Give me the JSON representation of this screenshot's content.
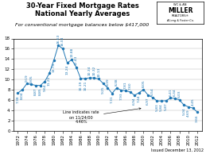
{
  "chart_data": {
    "type": "line",
    "title": "30-Year Fixed Mortgage Rates\nNational Yearly Averages",
    "subtitle": "For conventional mortgage balances below $417,000",
    "source": "Issued December 13, 2012",
    "logo_text": [
      "WC & AN",
      "MILLER",
      "REALTORS®",
      "A Long & Foster Co."
    ],
    "x": [
      1972,
      1973,
      1974,
      1975,
      1976,
      1977,
      1978,
      1979,
      1980,
      1981,
      1982,
      1983,
      1984,
      1985,
      1986,
      1987,
      1988,
      1989,
      1990,
      1991,
      1992,
      1993,
      1994,
      1995,
      1996,
      1997,
      1998,
      1999,
      2000,
      2001,
      2002,
      2003,
      2004,
      2005,
      2006,
      2007,
      2008,
      2009,
      2010,
      2011,
      2012
    ],
    "values": [
      7.38,
      8.04,
      9.19,
      9.05,
      8.87,
      8.85,
      9.64,
      11.2,
      13.74,
      16.63,
      16.04,
      13.24,
      13.88,
      12.43,
      10.19,
      10.21,
      10.34,
      10.32,
      10.13,
      9.25,
      8.39,
      7.31,
      8.38,
      7.93,
      7.81,
      7.6,
      6.94,
      7.44,
      8.05,
      6.97,
      6.54,
      5.83,
      5.84,
      5.87,
      6.41,
      6.34,
      6.03,
      5.04,
      4.69,
      4.45,
      3.66
    ],
    "value_labels": [
      "7.38",
      "8.04",
      "9.19",
      "9.05",
      "8.87",
      "8.85",
      "9.64",
      "11.20",
      "13.74",
      "16.63",
      "16.04",
      "13.24",
      "13.88",
      "12.43",
      "10.19",
      "10.21",
      "10.34",
      "10.32",
      "10.13",
      "9.25",
      "8.39",
      "7.31",
      "8.38",
      "7.93",
      "7.81",
      "7.60",
      "6.94",
      "7.44",
      "8.05",
      "6.97",
      "6.54",
      "5.83",
      "5.84",
      "5.87",
      "6.41",
      "6.34",
      "6.03",
      "5.04",
      "4.69",
      "4.45",
      "3.66"
    ],
    "data_labels": true,
    "marker": "o",
    "annotations": [
      {
        "text": "Line indicates rate\non 11/24/00\n4.46%",
        "x": 2000,
        "y": 4.46
      }
    ],
    "xlim": [
      1971,
      2013
    ],
    "xticks": [
      1972,
      1974,
      1976,
      1978,
      1980,
      1982,
      1984,
      1986,
      1988,
      1990,
      1992,
      1994,
      1996,
      1998,
      2000,
      2002,
      2004,
      2006,
      2008,
      2010,
      2012
    ],
    "ylim": [
      0,
      18
    ],
    "yticks": [
      0,
      2,
      4,
      6,
      8,
      10,
      12,
      14,
      16,
      18
    ],
    "grid": true
  }
}
